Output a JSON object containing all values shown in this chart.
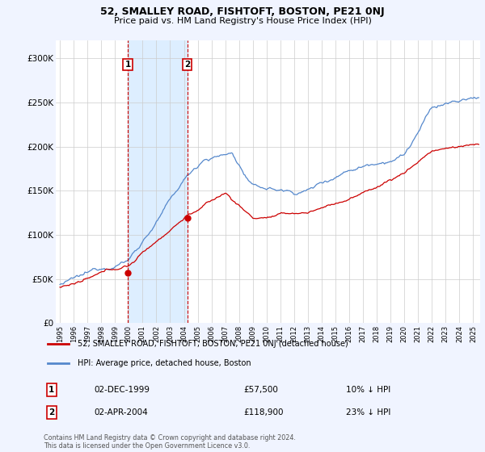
{
  "title": "52, SMALLEY ROAD, FISHTOFT, BOSTON, PE21 0NJ",
  "subtitle": "Price paid vs. HM Land Registry's House Price Index (HPI)",
  "ylabel_ticks": [
    "£0",
    "£50K",
    "£100K",
    "£150K",
    "£200K",
    "£250K",
    "£300K"
  ],
  "ytick_values": [
    0,
    50000,
    100000,
    150000,
    200000,
    250000,
    300000
  ],
  "ylim": [
    0,
    320000
  ],
  "xlim_start": 1994.7,
  "xlim_end": 2025.5,
  "hpi_color": "#5588cc",
  "price_color": "#cc0000",
  "shade_color": "#ddeeff",
  "transaction1_x": 1999.92,
  "transaction1_price": 57500,
  "transaction1_date": "02-DEC-1999",
  "transaction1_pct": "10% ↓ HPI",
  "transaction2_x": 2004.25,
  "transaction2_price": 118900,
  "transaction2_date": "02-APR-2004",
  "transaction2_pct": "23% ↓ HPI",
  "legend_line1": "52, SMALLEY ROAD, FISHTOFT, BOSTON, PE21 0NJ (detached house)",
  "legend_line2": "HPI: Average price, detached house, Boston",
  "footer": "Contains HM Land Registry data © Crown copyright and database right 2024.\nThis data is licensed under the Open Government Licence v3.0.",
  "background_color": "#f0f4ff",
  "plot_bg_color": "#ffffff"
}
